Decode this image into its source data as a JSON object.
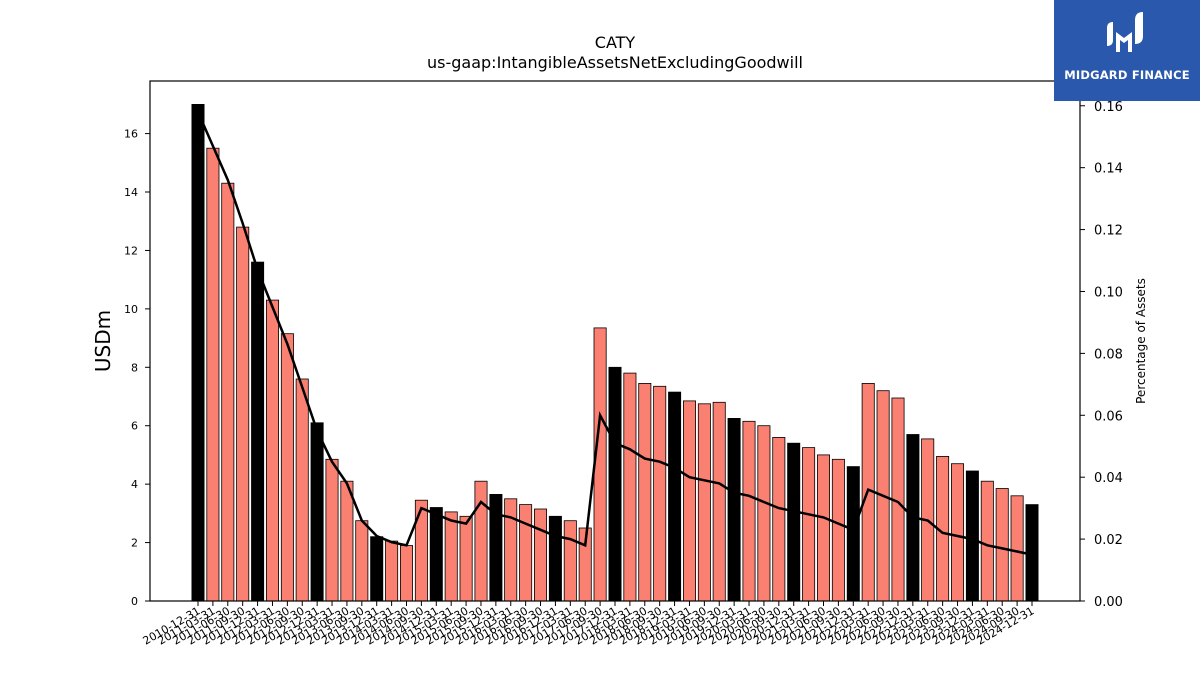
{
  "chart_data": {
    "type": "bar",
    "title": "CATY",
    "subtitle": "us-gaap:IntangibleAssetsNetExcludingGoodwill",
    "ylabel": "USDm",
    "y2label": "Percentage of Assets",
    "ylim": [
      0,
      17.8
    ],
    "y2lim": [
      0,
      0.168
    ],
    "yticks": [
      0,
      2,
      4,
      6,
      8,
      10,
      12,
      14,
      16
    ],
    "y2ticks": [
      "0.00",
      "0.02",
      "0.04",
      "0.06",
      "0.08",
      "0.10",
      "0.12",
      "0.14",
      "0.16"
    ],
    "categories": [
      "2010-12-31",
      "2011-03-31",
      "2011-06-30",
      "2011-09-30",
      "2011-12-31",
      "2012-03-31",
      "2012-06-30",
      "2012-09-30",
      "2012-12-31",
      "2013-03-31",
      "2013-06-30",
      "2013-09-30",
      "2013-12-31",
      "2014-03-31",
      "2014-06-30",
      "2014-09-30",
      "2014-12-31",
      "2015-03-31",
      "2015-06-30",
      "2015-09-30",
      "2015-12-31",
      "2016-03-31",
      "2016-06-30",
      "2016-09-30",
      "2016-12-31",
      "2017-03-31",
      "2017-06-30",
      "2017-09-30",
      "2017-12-31",
      "2018-03-31",
      "2018-06-30",
      "2018-09-30",
      "2018-12-31",
      "2019-03-31",
      "2019-06-30",
      "2019-09-30",
      "2019-12-31",
      "2020-03-31",
      "2020-06-30",
      "2020-09-30",
      "2020-12-31",
      "2021-03-31",
      "2021-06-30",
      "2021-09-30",
      "2021-12-31",
      "2022-03-31",
      "2022-06-30",
      "2022-09-30",
      "2022-12-31",
      "2023-03-31",
      "2023-06-30",
      "2023-09-30",
      "2023-12-31",
      "2024-03-31",
      "2024-06-30",
      "2024-09-30",
      "2024-12-31"
    ],
    "series": [
      {
        "type": "bar",
        "values": [
          17.0,
          15.5,
          14.3,
          12.8,
          11.6,
          10.3,
          9.15,
          7.6,
          6.1,
          4.85,
          4.1,
          2.75,
          2.2,
          2.05,
          1.9,
          3.45,
          3.2,
          3.05,
          2.9,
          4.1,
          3.65,
          3.5,
          3.3,
          3.15,
          2.9,
          2.75,
          2.5,
          9.35,
          8.0,
          7.8,
          7.45,
          7.35,
          7.15,
          6.85,
          6.75,
          6.8,
          6.25,
          6.15,
          6.0,
          5.6,
          5.4,
          5.25,
          5.0,
          4.85,
          4.6,
          7.45,
          7.2,
          6.95,
          5.7,
          5.55,
          4.95,
          4.7,
          4.45,
          4.1,
          3.85,
          3.6,
          3.3
        ],
        "highlight_color": "#000000",
        "color": "#fa8072",
        "highlight_pattern": "every 4th bar (year-end) in black"
      },
      {
        "type": "line",
        "axis": "right",
        "color": "#000000",
        "values": [
          0.158,
          0.147,
          0.136,
          0.122,
          0.107,
          0.095,
          0.083,
          0.069,
          0.055,
          0.045,
          0.038,
          0.026,
          0.021,
          0.019,
          0.018,
          0.03,
          0.028,
          0.026,
          0.025,
          0.032,
          0.028,
          0.027,
          0.025,
          0.023,
          0.021,
          0.02,
          0.018,
          0.06,
          0.051,
          0.049,
          0.046,
          0.045,
          0.043,
          0.04,
          0.039,
          0.038,
          0.035,
          0.034,
          0.032,
          0.03,
          0.029,
          0.028,
          0.027,
          0.025,
          0.023,
          0.036,
          0.034,
          0.032,
          0.027,
          0.026,
          0.022,
          0.021,
          0.02,
          0.018,
          0.017,
          0.016,
          0.015
        ]
      }
    ]
  },
  "logo": {
    "text": "MIDGARD FINANCE"
  }
}
